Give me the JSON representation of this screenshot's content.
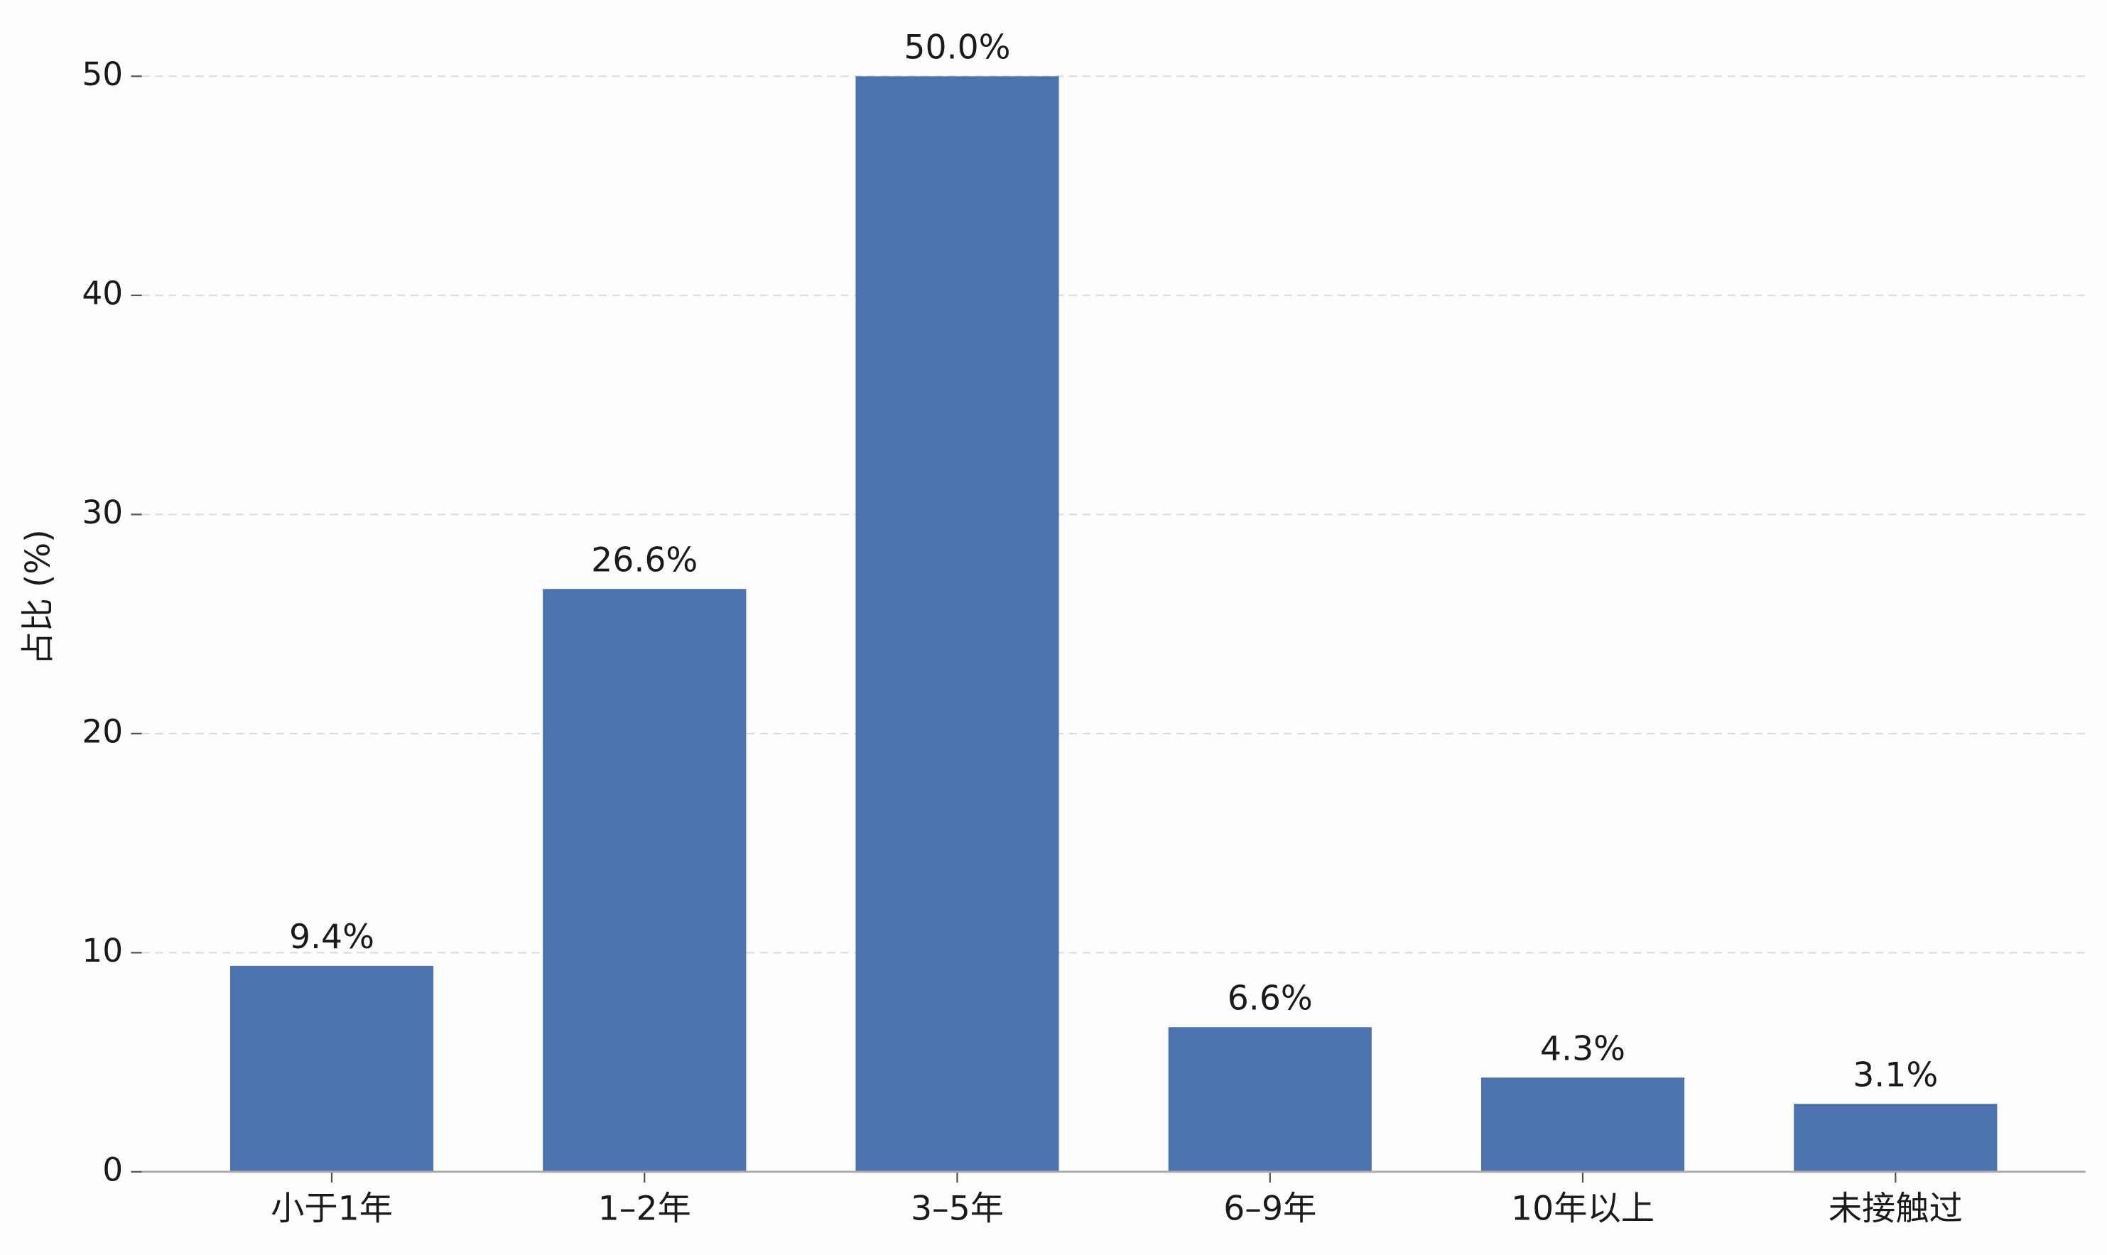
{
  "chart_data": {
    "type": "bar",
    "y_label": "占比 (%)",
    "categories": [
      "小于1年",
      "1–2年",
      "3–5年",
      "6–9年",
      "10年以上",
      "未接触过"
    ],
    "values": [
      9.4,
      26.6,
      50.0,
      6.6,
      4.3,
      3.1
    ],
    "value_labels": [
      "9.4%",
      "26.6%",
      "50.0%",
      "6.6%",
      "4.3%",
      "3.1%"
    ],
    "color": "#4c72b0",
    "ylim": [
      0,
      52.5
    ],
    "yticks": [
      0,
      10,
      20,
      30,
      40,
      50
    ],
    "grid": true
  }
}
